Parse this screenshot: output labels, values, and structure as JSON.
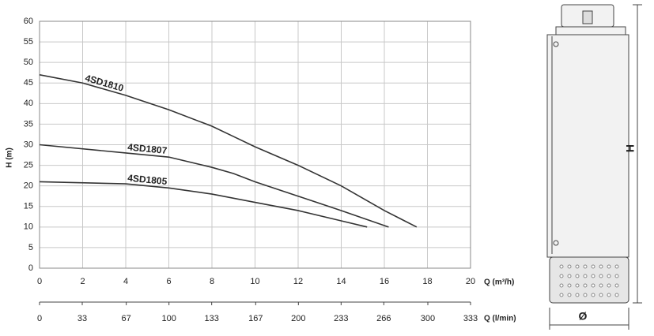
{
  "chart_data": {
    "type": "line",
    "ylabel": "H (m)",
    "xlabel": "Q (m³/h)",
    "x2label": "Q (l/min)",
    "xlim": [
      0,
      20
    ],
    "xticks": [
      0,
      2,
      4,
      6,
      8,
      10,
      12,
      14,
      16,
      18,
      20
    ],
    "ylim": [
      0,
      60
    ],
    "yticks": [
      0,
      5,
      10,
      15,
      20,
      25,
      30,
      35,
      40,
      45,
      50,
      55,
      60
    ],
    "x2lim": [
      0,
      333
    ],
    "x2ticks": [
      0,
      33,
      67,
      100,
      133,
      167,
      200,
      233,
      266,
      300,
      333
    ],
    "grid": true,
    "series": [
      {
        "name": "4SD1810",
        "color": "#333333",
        "x": [
          0,
          2,
          4,
          6,
          8,
          9,
          10,
          12,
          14,
          16,
          17.5
        ],
        "values": [
          47,
          45,
          42,
          38.5,
          34.5,
          32,
          29.5,
          25,
          20,
          14,
          10
        ]
      },
      {
        "name": "4SD1807",
        "color": "#333333",
        "x": [
          0,
          4,
          6,
          8,
          9,
          10,
          12,
          14,
          16.2
        ],
        "values": [
          30,
          28,
          27,
          24.5,
          23,
          21,
          17.5,
          14,
          10
        ]
      },
      {
        "name": "4SD1805",
        "color": "#333333",
        "x": [
          0,
          4,
          6,
          8,
          10,
          12,
          14,
          15.2
        ],
        "values": [
          21,
          20.5,
          19.5,
          18,
          16,
          14,
          11.5,
          10
        ]
      }
    ]
  },
  "drawing": {
    "height_label": "H",
    "diameter_label": "Ø"
  }
}
